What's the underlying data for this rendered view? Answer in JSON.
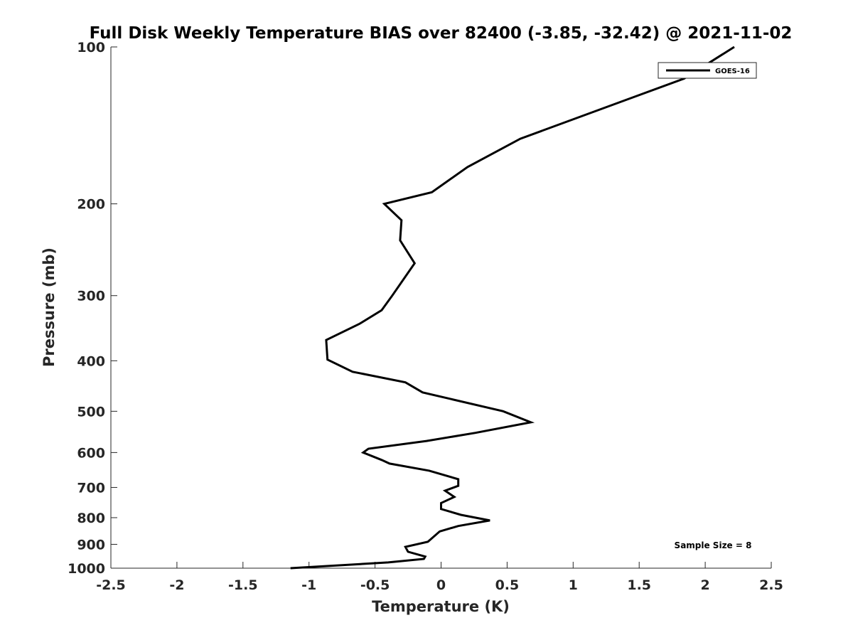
{
  "chart_data": {
    "type": "line",
    "title": "Full Disk Weekly Temperature BIAS over 82400 (-3.85, -32.42) @ 2021-11-02",
    "xlabel": "Temperature (K)",
    "ylabel": "Pressure (mb)",
    "xlim": [
      -2.5,
      2.5
    ],
    "ylim": [
      100,
      1000
    ],
    "y_scale": "log",
    "y_reversed": true,
    "x_ticks": [
      "-2.5",
      "-2",
      "-1.5",
      "-1",
      "-0.5",
      "0",
      "0.5",
      "1",
      "1.5",
      "2",
      "2.5"
    ],
    "y_ticks": [
      "100",
      "200",
      "300",
      "400",
      "500",
      "600",
      "700",
      "800",
      "900",
      "1000"
    ],
    "grid": false,
    "legend_position": "top-right",
    "annotation": "Sample Size = 8",
    "series": [
      {
        "name": "GOES-16",
        "color": "#000000",
        "points": [
          [
            2.22,
            100
          ],
          [
            1.84,
            115
          ],
          [
            0.6,
            150
          ],
          [
            0.2,
            170
          ],
          [
            -0.07,
            190
          ],
          [
            -0.43,
            200
          ],
          [
            -0.3,
            215
          ],
          [
            -0.31,
            235
          ],
          [
            -0.2,
            260
          ],
          [
            -0.37,
            300
          ],
          [
            -0.45,
            320
          ],
          [
            -0.62,
            340
          ],
          [
            -0.87,
            365
          ],
          [
            -0.86,
            398
          ],
          [
            -0.67,
            420
          ],
          [
            -0.27,
            440
          ],
          [
            -0.14,
            460
          ],
          [
            0.47,
            500
          ],
          [
            0.68,
            525
          ],
          [
            0.26,
            550
          ],
          [
            -0.11,
            570
          ],
          [
            -0.55,
            590
          ],
          [
            -0.59,
            600
          ],
          [
            -0.45,
            620
          ],
          [
            -0.39,
            630
          ],
          [
            -0.09,
            650
          ],
          [
            0.13,
            675
          ],
          [
            0.13,
            695
          ],
          [
            0.03,
            710
          ],
          [
            0.1,
            730
          ],
          [
            0.0,
            750
          ],
          [
            0.0,
            770
          ],
          [
            0.15,
            790
          ],
          [
            0.37,
            810
          ],
          [
            0.13,
            830
          ],
          [
            -0.01,
            850
          ],
          [
            -0.1,
            890
          ],
          [
            -0.27,
            910
          ],
          [
            -0.25,
            930
          ],
          [
            -0.12,
            950
          ],
          [
            -0.13,
            960
          ],
          [
            -0.4,
            975
          ],
          [
            -1.14,
            1000
          ]
        ]
      }
    ]
  }
}
